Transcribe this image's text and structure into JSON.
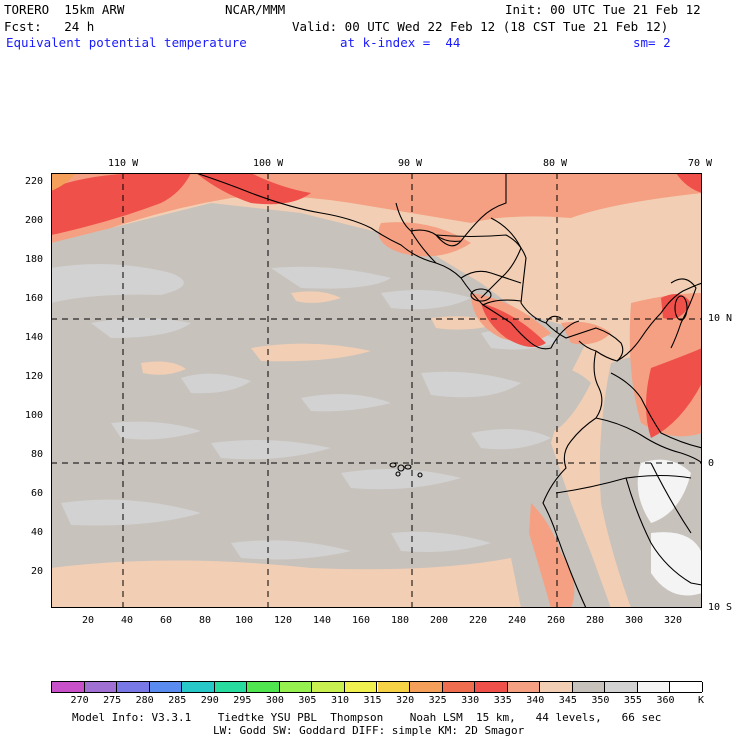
{
  "header": {
    "model": "TORERO  15km ARW",
    "center": "NCAR/MMM",
    "init": "Init: 00 UTC Tue 21 Feb 12",
    "fcst": "Fcst:   24 h",
    "valid": "Valid: 00 UTC Wed 22 Feb 12 (18 CST Tue 21 Feb 12)",
    "field": "Equivalent potential temperature",
    "level": "at k-index =  44",
    "smooth": "sm= 2"
  },
  "map": {
    "lon_labels": [
      "110 W",
      "100 W",
      "90 W",
      "80 W",
      "70 W"
    ],
    "lat_labels": [
      "10 N",
      "0",
      "10 S"
    ],
    "y_ticks": [
      "220",
      "200",
      "180",
      "160",
      "140",
      "120",
      "100",
      "80",
      "60",
      "40",
      "20"
    ],
    "x_ticks": [
      "20",
      "40",
      "60",
      "80",
      "100",
      "120",
      "140",
      "160",
      "180",
      "200",
      "220",
      "240",
      "260",
      "280",
      "300",
      "320"
    ],
    "colors": {
      "background_grey": "#c8c2bc",
      "light_grey": "#d2d2d2",
      "peach": "#f2cfb4",
      "salmon": "#f5a082",
      "red": "#f0504a",
      "white": "#f4f4f4",
      "coast": "#000000"
    }
  },
  "legend": {
    "values": [
      "270",
      "275",
      "280",
      "285",
      "290",
      "295",
      "300",
      "305",
      "310",
      "315",
      "320",
      "325",
      "330",
      "335",
      "340",
      "345",
      "350",
      "355",
      "360"
    ],
    "unit": "K",
    "colors": [
      "#c850c8",
      "#a070d2",
      "#7878e6",
      "#5a8cf0",
      "#28c8c8",
      "#28dca0",
      "#50e650",
      "#96f050",
      "#c8f050",
      "#f0f050",
      "#f5d246",
      "#f5a05a",
      "#f06e50",
      "#f0504a",
      "#f5a082",
      "#f2cfb4",
      "#c8c2bc",
      "#d2d2d2",
      "#f4f4f4",
      "#ffffff"
    ]
  },
  "footer": {
    "line1": "Model Info: V3.3.1    Tiedtke YSU PBL  Thompson    Noah LSM  15 km,   44 levels,   66 sec",
    "line2": "LW: Godd SW: Goddard DIFF: simple KM: 2D Smagor"
  }
}
